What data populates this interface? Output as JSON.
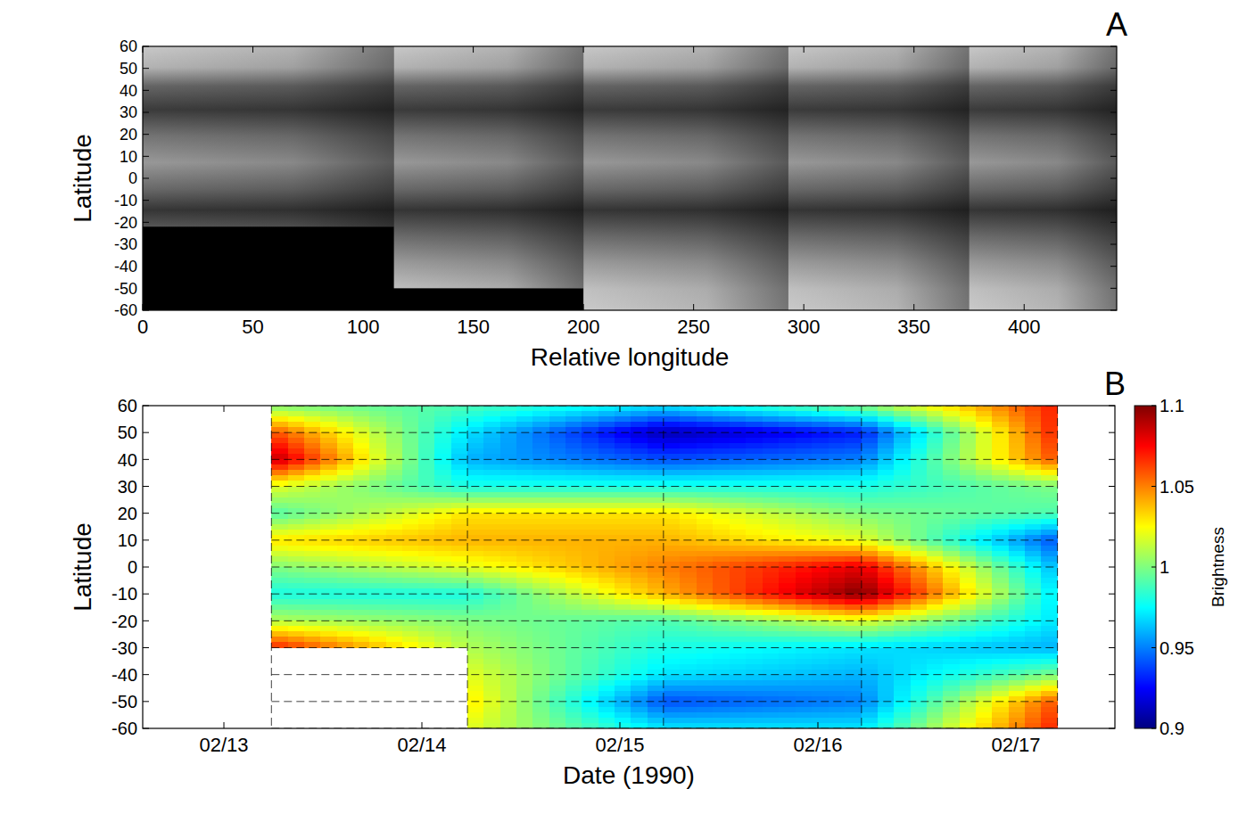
{
  "chart_data": [
    {
      "type": "image",
      "panel": "A",
      "xlabel": "Relative longitude",
      "ylabel": "Latitude",
      "xlim": [
        0,
        442
      ],
      "ylim": [
        -60,
        60
      ],
      "xticks": [
        0,
        50,
        100,
        150,
        200,
        250,
        300,
        350,
        400
      ],
      "yticks": [
        60,
        50,
        40,
        30,
        20,
        10,
        0,
        -10,
        -20,
        -30,
        -40,
        -50,
        -60
      ],
      "tiles": [
        {
          "x": [
            0,
            114
          ],
          "lat": [
            -22,
            60
          ]
        },
        {
          "x": [
            114,
            200
          ],
          "lat": [
            -50,
            60
          ]
        },
        {
          "x": [
            200,
            293
          ],
          "lat": [
            -60,
            60
          ]
        },
        {
          "x": [
            293,
            375
          ],
          "lat": [
            -60,
            60
          ]
        },
        {
          "x": [
            375,
            442
          ],
          "lat": [
            -60,
            60
          ]
        }
      ]
    },
    {
      "type": "heatmap",
      "panel": "B",
      "xlabel": "Date (1990)",
      "ylabel": "Latitude",
      "xlim": [
        12.59,
        17.5
      ],
      "ylim": [
        -60,
        60
      ],
      "xticks": [
        {
          "value": 13,
          "label": "02/13"
        },
        {
          "value": 14,
          "label": "02/14"
        },
        {
          "value": 15,
          "label": "02/15"
        },
        {
          "value": 16,
          "label": "02/16"
        },
        {
          "value": 17,
          "label": "02/17"
        }
      ],
      "yticks": [
        60,
        50,
        40,
        30,
        20,
        10,
        0,
        -10,
        -20,
        -30,
        -40,
        -50,
        -60
      ],
      "x": [
        13.24,
        14.23,
        15.22,
        16.22,
        17.21
      ],
      "y": [
        60,
        50,
        40,
        30,
        20,
        10,
        0,
        -10,
        -20,
        -30,
        -40,
        -50,
        -60
      ],
      "cells": [
        [
          1.0,
          0.99,
          0.97,
          1.0,
          1.07
        ],
        [
          1.06,
          0.97,
          0.91,
          0.93,
          1.07
        ],
        [
          1.09,
          0.96,
          0.94,
          0.95,
          1.06
        ],
        [
          1.02,
          0.98,
          0.98,
          0.98,
          1.0
        ],
        [
          0.99,
          1.03,
          1.03,
          1.0,
          0.99
        ],
        [
          1.03,
          1.04,
          1.04,
          1.02,
          0.94
        ],
        [
          1.0,
          1.02,
          1.05,
          1.08,
          0.96
        ],
        [
          0.98,
          0.98,
          1.04,
          1.1,
          0.97
        ],
        [
          1.01,
          1.0,
          0.99,
          1.02,
          0.97
        ],
        [
          1.07,
          1.01,
          0.98,
          0.97,
          0.96
        ],
        [
          null,
          1.02,
          0.97,
          0.96,
          1.0
        ],
        [
          null,
          1.03,
          0.94,
          0.95,
          1.06
        ],
        [
          null,
          1.02,
          0.97,
          0.97,
          1.07
        ]
      ],
      "grid": true,
      "colorbar": {
        "label": "Brightness",
        "range": [
          0.9,
          1.1
        ],
        "ticks": [
          0.9,
          0.95,
          1,
          1.05,
          1.1
        ]
      }
    }
  ]
}
